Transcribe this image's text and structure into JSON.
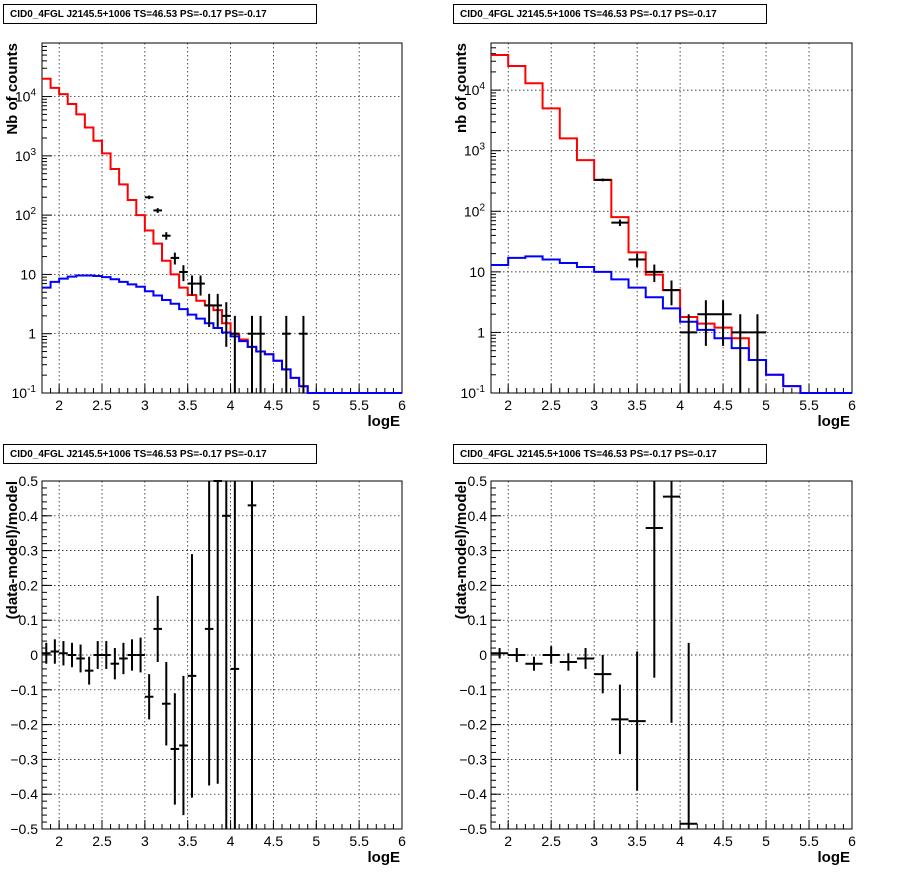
{
  "chart_data": [
    {
      "type": "line",
      "title": "CID0_4FGL J2145.5+1006 TS=46.53 PS=-0.17 PS=-0.17",
      "xlabel": "logE",
      "ylabel": "Nb of counts",
      "xlim": [
        1.8,
        6.0
      ],
      "ylim": [
        0.1,
        80000
      ],
      "yscale": "log",
      "grid": true,
      "xticks": [
        "2",
        "2.5",
        "3",
        "3.5",
        "4",
        "4.5",
        "5",
        "5.5",
        "6"
      ],
      "yticks": [
        "10^-1",
        "1",
        "10",
        "10^2",
        "10^3",
        "10^4"
      ],
      "bin_edges": [
        1.8,
        1.9,
        2.0,
        2.1,
        2.2,
        2.3,
        2.4,
        2.5,
        2.6,
        2.7,
        2.8,
        2.9,
        3.0,
        3.1,
        3.2,
        3.3,
        3.4,
        3.5,
        3.6,
        3.7,
        3.8,
        3.9,
        4.0,
        4.1,
        4.2,
        4.3,
        4.4,
        4.5,
        4.6,
        4.7,
        4.8,
        4.9,
        5.0,
        5.1,
        5.2,
        5.3,
        5.4,
        5.5,
        5.6,
        5.7,
        5.8,
        5.9,
        6.0
      ],
      "series": [
        {
          "color": "#ff0000",
          "style": "step",
          "values": [
            20000,
            14000,
            11000,
            7500,
            5000,
            3000,
            1800,
            1100,
            600,
            330,
            180,
            100,
            55,
            33,
            17,
            10,
            6,
            4.5,
            3.6,
            3.0,
            2.5,
            1.5,
            1.0,
            0.8,
            0.6,
            0.5,
            0.45,
            0.35,
            0.25,
            0.18,
            0.13,
            0.1,
            0.1,
            0.1,
            0.1,
            0.1,
            0.1,
            0.1,
            0.1,
            0.1,
            0.1,
            0.1
          ]
        },
        {
          "color": "#0000ff",
          "style": "step",
          "values": [
            6,
            7.5,
            8.5,
            9.2,
            9.6,
            9.6,
            9.4,
            9.0,
            8.3,
            7.5,
            6.8,
            6.2,
            5.2,
            4.4,
            3.7,
            3.2,
            2.6,
            2.1,
            1.8,
            1.5,
            1.25,
            1.05,
            0.9,
            0.75,
            0.6,
            0.5,
            0.45,
            0.35,
            0.25,
            0.18,
            0.13,
            0.1,
            0.1,
            0.1,
            0.1,
            0.1,
            0.1,
            0.1,
            0.1,
            0.1,
            0.1,
            0.1
          ]
        },
        {
          "color": "#000000",
          "style": "errorbar",
          "points": [
            {
              "x": 3.05,
              "y": 200,
              "lo": 186,
              "hi": 214
            },
            {
              "x": 3.15,
              "y": 120,
              "lo": 109,
              "hi": 131
            },
            {
              "x": 3.25,
              "y": 45,
              "lo": 38.5,
              "hi": 51.5
            },
            {
              "x": 3.35,
              "y": 19,
              "lo": 14.7,
              "hi": 23.3
            },
            {
              "x": 3.45,
              "y": 11,
              "lo": 7.7,
              "hi": 14.3
            },
            {
              "x": 3.55,
              "y": 7,
              "lo": 4.4,
              "hi": 9.6
            },
            {
              "x": 3.65,
              "y": 7,
              "lo": 4.4,
              "hi": 9.6
            },
            {
              "x": 3.75,
              "y": 3,
              "lo": 1.3,
              "hi": 4.7
            },
            {
              "x": 3.85,
              "y": 3,
              "lo": 1.3,
              "hi": 4.7
            },
            {
              "x": 3.95,
              "y": 2,
              "lo": 0.6,
              "hi": 3.4
            },
            {
              "x": 4.05,
              "y": 1,
              "lo": 0.1,
              "hi": 2.0
            },
            {
              "x": 4.25,
              "y": 1,
              "lo": 0.1,
              "hi": 2.0
            },
            {
              "x": 4.35,
              "y": 1,
              "lo": 0.1,
              "hi": 2.0
            },
            {
              "x": 4.65,
              "y": 1,
              "lo": 0.1,
              "hi": 2.0
            },
            {
              "x": 4.85,
              "y": 1,
              "lo": 0.1,
              "hi": 2.0
            }
          ]
        }
      ]
    },
    {
      "type": "line",
      "title": "CID0_4FGL J2145.5+1006 TS=46.53 PS=-0.17 PS=-0.17",
      "xlabel": "logE",
      "ylabel": "nb of counts",
      "xlim": [
        1.8,
        6.0
      ],
      "ylim": [
        0.1,
        60000
      ],
      "yscale": "log",
      "grid": true,
      "xticks": [
        "2",
        "2.5",
        "3",
        "3.5",
        "4",
        "4.5",
        "5",
        "5.5",
        "6"
      ],
      "yticks": [
        "10^-1",
        "1",
        "10",
        "10^2",
        "10^3",
        "10^4"
      ],
      "bin_edges": [
        1.8,
        2.0,
        2.2,
        2.4,
        2.6,
        2.8,
        3.0,
        3.2,
        3.4,
        3.6,
        3.8,
        4.0,
        4.2,
        4.4,
        4.6,
        4.8,
        5.0,
        5.2,
        5.4,
        5.6,
        5.8,
        6.0
      ],
      "series": [
        {
          "color": "#ff0000",
          "style": "step",
          "values": [
            38000,
            25000,
            13000,
            5000,
            1600,
            700,
            330,
            80,
            21,
            9,
            5,
            1.8,
            1.4,
            1.2,
            0.8,
            0.35,
            0.2,
            0.13,
            0.1,
            0.1,
            0.1
          ]
        },
        {
          "color": "#0000ff",
          "style": "step",
          "values": [
            13,
            17,
            18,
            16,
            14,
            12,
            10,
            7.5,
            5.5,
            3.8,
            2.5,
            1.5,
            1.1,
            0.8,
            0.55,
            0.35,
            0.2,
            0.13,
            0.1,
            0.1,
            0.1
          ]
        },
        {
          "color": "#000000",
          "style": "errorbar",
          "points": [
            {
              "x": 3.1,
              "y": 330,
              "lo": 312,
              "hi": 348
            },
            {
              "x": 3.3,
              "y": 65,
              "lo": 57,
              "hi": 73
            },
            {
              "x": 3.5,
              "y": 16,
              "lo": 12,
              "hi": 20
            },
            {
              "x": 3.7,
              "y": 10,
              "lo": 6.8,
              "hi": 13.2
            },
            {
              "x": 3.9,
              "y": 5,
              "lo": 2.8,
              "hi": 7.2
            },
            {
              "x": 4.1,
              "y": 1,
              "lo": 0.1,
              "hi": 2.0
            },
            {
              "x": 4.3,
              "y": 2,
              "lo": 0.6,
              "hi": 3.4
            },
            {
              "x": 4.5,
              "y": 2,
              "lo": 0.6,
              "hi": 3.4
            },
            {
              "x": 4.7,
              "y": 1,
              "lo": 0.1,
              "hi": 2.0
            },
            {
              "x": 4.9,
              "y": 1,
              "lo": 0.1,
              "hi": 2.0
            }
          ]
        }
      ]
    },
    {
      "type": "scatter",
      "title": "CID0_4FGL J2145.5+1006 TS=46.53 PS=-0.17 PS=-0.17",
      "xlabel": "logE",
      "ylabel": "(data-model)/model",
      "xlim": [
        1.8,
        6.0
      ],
      "ylim": [
        -0.5,
        0.5
      ],
      "grid": true,
      "xticks": [
        "2",
        "2.5",
        "3",
        "3.5",
        "4",
        "4.5",
        "5",
        "5.5",
        "6"
      ],
      "yticks": [
        "-0.5",
        "-0.4",
        "-0.3",
        "-0.2",
        "-0.1",
        "0",
        "0.1",
        "0.2",
        "0.3",
        "0.4",
        "0.5"
      ],
      "xerr": 0.05,
      "points": [
        {
          "x": 1.85,
          "y": 0.005,
          "err": 0.03
        },
        {
          "x": 1.95,
          "y": 0.01,
          "err": 0.035
        },
        {
          "x": 2.05,
          "y": 0.005,
          "err": 0.035
        },
        {
          "x": 2.15,
          "y": 0.0,
          "err": 0.035
        },
        {
          "x": 2.25,
          "y": -0.01,
          "err": 0.04
        },
        {
          "x": 2.35,
          "y": -0.045,
          "err": 0.04
        },
        {
          "x": 2.45,
          "y": 0.0,
          "err": 0.04
        },
        {
          "x": 2.55,
          "y": 0.0,
          "err": 0.04
        },
        {
          "x": 2.65,
          "y": -0.025,
          "err": 0.045
        },
        {
          "x": 2.75,
          "y": -0.01,
          "err": 0.045
        },
        {
          "x": 2.85,
          "y": 0.0,
          "err": 0.045
        },
        {
          "x": 2.95,
          "y": 0.0,
          "err": 0.05
        },
        {
          "x": 3.05,
          "y": -0.12,
          "err": 0.065
        },
        {
          "x": 3.15,
          "y": 0.075,
          "err": 0.095
        },
        {
          "x": 3.25,
          "y": -0.14,
          "err": 0.12
        },
        {
          "x": 3.35,
          "y": -0.27,
          "err": 0.16
        },
        {
          "x": 3.45,
          "y": -0.26,
          "err": 0.2
        },
        {
          "x": 3.55,
          "y": -0.06,
          "err": 0.35
        },
        {
          "x": 3.75,
          "y": 0.075,
          "err": 0.45
        },
        {
          "x": 3.85,
          "y": 0.5,
          "err": 0.87
        },
        {
          "x": 3.95,
          "y": 0.4,
          "err": 1.0
        },
        {
          "x": 4.05,
          "y": -0.04,
          "err": 1.0
        },
        {
          "x": 4.25,
          "y": 0.43,
          "err": 1.4
        }
      ]
    },
    {
      "type": "scatter",
      "title": "CID0_4FGL J2145.5+1006 TS=46.53 PS=-0.17 PS=-0.17",
      "xlabel": "logE",
      "ylabel": "(data-model)/model",
      "xlim": [
        1.8,
        6.0
      ],
      "ylim": [
        -0.5,
        0.5
      ],
      "grid": true,
      "xticks": [
        "2",
        "2.5",
        "3",
        "3.5",
        "4",
        "4.5",
        "5",
        "5.5",
        "6"
      ],
      "yticks": [
        "-0.5",
        "-0.4",
        "-0.3",
        "-0.2",
        "-0.1",
        "0",
        "0.1",
        "0.2",
        "0.3",
        "0.4",
        "0.5"
      ],
      "xerr": 0.1,
      "points": [
        {
          "x": 1.9,
          "y": 0.005,
          "err": 0.015
        },
        {
          "x": 2.1,
          "y": 0.0,
          "err": 0.02
        },
        {
          "x": 2.3,
          "y": -0.025,
          "err": 0.02
        },
        {
          "x": 2.5,
          "y": 0.0,
          "err": 0.025
        },
        {
          "x": 2.7,
          "y": -0.02,
          "err": 0.025
        },
        {
          "x": 2.9,
          "y": -0.01,
          "err": 0.03
        },
        {
          "x": 3.1,
          "y": -0.055,
          "err": 0.055
        },
        {
          "x": 3.3,
          "y": -0.185,
          "err": 0.1
        },
        {
          "x": 3.5,
          "y": -0.19,
          "err": 0.2
        },
        {
          "x": 3.7,
          "y": 0.365,
          "err": 0.43
        },
        {
          "x": 3.9,
          "y": 0.455,
          "err": 0.65
        },
        {
          "x": 4.1,
          "y": -0.485,
          "err": 0.52
        }
      ]
    }
  ]
}
